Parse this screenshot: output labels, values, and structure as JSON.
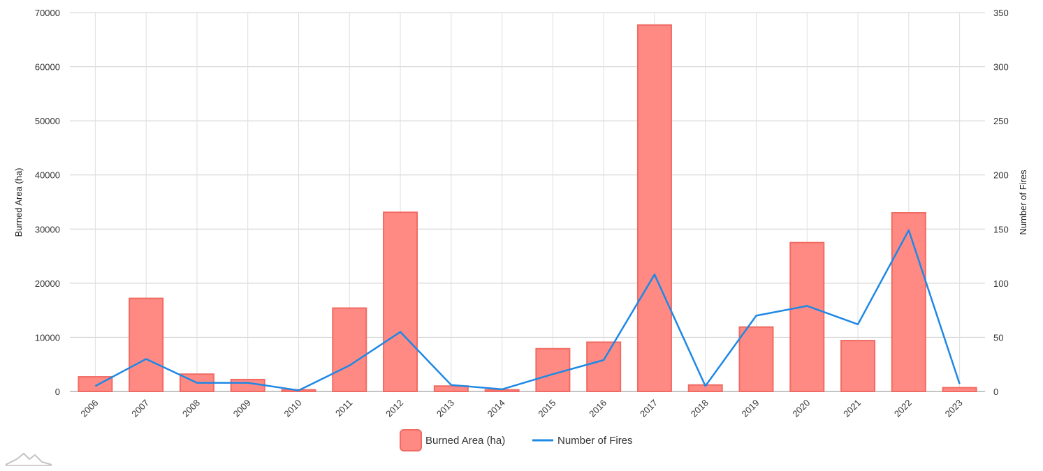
{
  "chart_data": {
    "type": "bar",
    "categories": [
      "2006",
      "2007",
      "2008",
      "2009",
      "2010",
      "2011",
      "2012",
      "2013",
      "2014",
      "2015",
      "2016",
      "2017",
      "2018",
      "2019",
      "2020",
      "2021",
      "2022",
      "2023"
    ],
    "series": [
      {
        "name": "Burned Area (ha)",
        "type": "bar",
        "axis": "left",
        "color": "#ff8a84",
        "stroke": "#f06b63",
        "values": [
          2700,
          17200,
          3200,
          2200,
          300,
          15400,
          33100,
          1000,
          300,
          7900,
          9100,
          67700,
          1200,
          11900,
          27500,
          9400,
          33000,
          700
        ]
      },
      {
        "name": "Number of Fires",
        "type": "line",
        "axis": "right",
        "color": "#1e88e5",
        "values": [
          5,
          30,
          8,
          8,
          1,
          24,
          55,
          6,
          2,
          16,
          29,
          108,
          5,
          70,
          79,
          62,
          149,
          7
        ]
      }
    ],
    "ylabel": "Burned Area (ha)",
    "ylabel_right": "Number of Fires",
    "ylim": [
      0,
      70000
    ],
    "ylim_right": [
      0,
      350
    ],
    "yticks": [
      "0",
      "10000",
      "20000",
      "30000",
      "40000",
      "50000",
      "60000",
      "70000"
    ],
    "yticks_right": [
      "0",
      "50",
      "100",
      "150",
      "200",
      "250",
      "300",
      "350"
    ],
    "grid": true,
    "legend": "bottom-center"
  }
}
